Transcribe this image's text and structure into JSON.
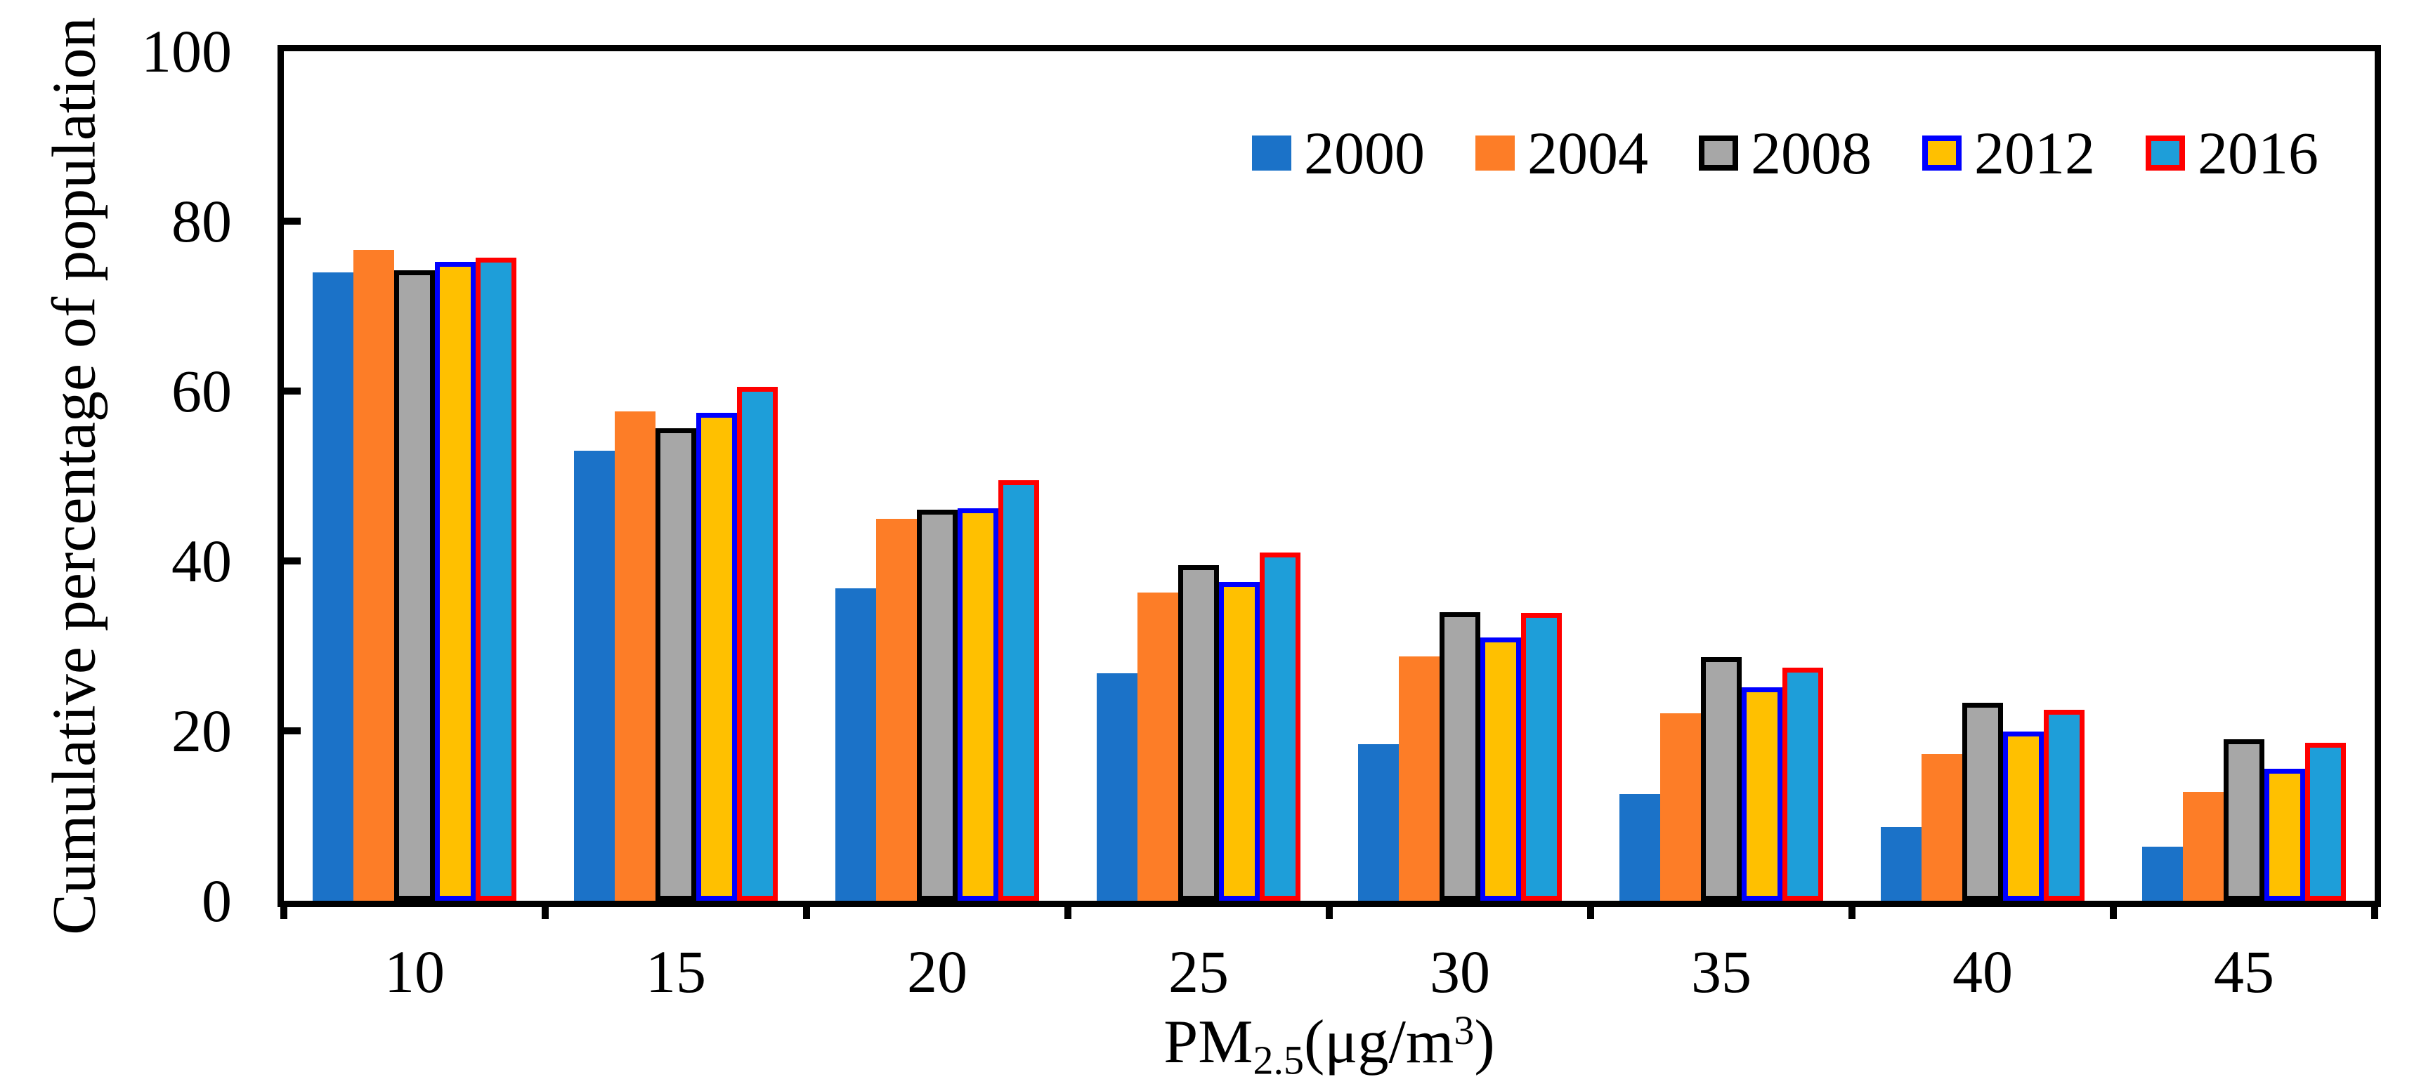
{
  "figure": {
    "background": "#FFFFFF"
  },
  "axes": {
    "y_title": "Cumulative percentage of population",
    "x_title_parts": {
      "prefix": "PM",
      "subscript": "2.5",
      "mid": "(μg/m",
      "superscript": "3",
      "suffix": ")"
    }
  },
  "colors": {
    "axis": "#000000",
    "fill_2000": "#1B72C8",
    "fill_2004": "#FD7D27",
    "fill_2008": "#A7A7A7",
    "fill_2012": "#FFC000",
    "fill_2016": "#1E9ED9",
    "border_2008": "#000000",
    "border_2012": "#0000FF",
    "border_2016": "#FF0000"
  },
  "chart_data": {
    "type": "bar",
    "title": "",
    "xlabel": "PM2.5(μg/m3)",
    "ylabel": "Cumulative percentage of population",
    "categories": [
      "10",
      "15",
      "20",
      "25",
      "30",
      "35",
      "40",
      "45"
    ],
    "series": [
      {
        "name": "2000",
        "fill": "#1B72C8",
        "border": null,
        "values": [
          74.0,
          53.0,
          36.8,
          26.8,
          18.4,
          12.6,
          8.7,
          6.4
        ]
      },
      {
        "name": "2004",
        "fill": "#FD7D27",
        "border": null,
        "values": [
          76.6,
          57.6,
          45.0,
          36.3,
          28.8,
          22.1,
          17.3,
          12.8
        ]
      },
      {
        "name": "2008",
        "fill": "#A7A7A7",
        "border": "#000000",
        "values": [
          74.2,
          55.6,
          46.0,
          39.5,
          34.0,
          28.7,
          23.3,
          19.0
        ]
      },
      {
        "name": "2012",
        "fill": "#FFC000",
        "border": "#0000FF",
        "values": [
          75.2,
          57.4,
          46.2,
          37.5,
          31.0,
          25.1,
          19.9,
          15.5
        ]
      },
      {
        "name": "2016",
        "fill": "#1E9ED9",
        "border": "#FF0000",
        "values": [
          75.7,
          60.5,
          49.5,
          41.0,
          33.9,
          27.4,
          22.5,
          18.6
        ]
      }
    ],
    "ylim": [
      0,
      100
    ],
    "yticks": [
      0,
      20,
      40,
      60,
      80,
      100
    ],
    "grid": false,
    "legend_position": "top-right-inside"
  }
}
